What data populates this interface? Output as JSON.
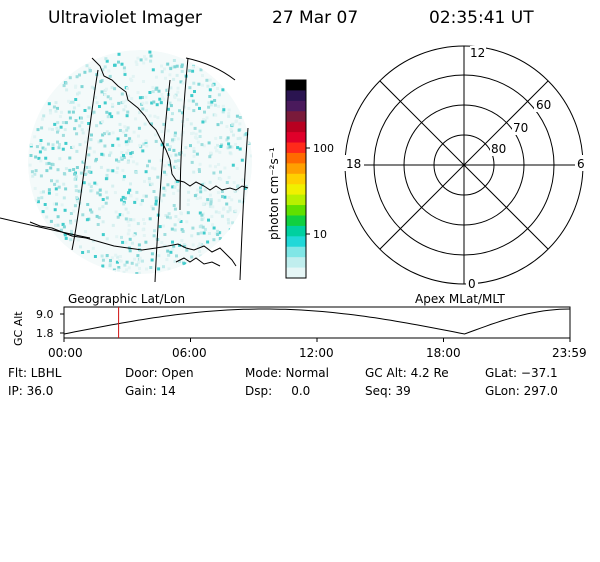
{
  "header": {
    "title": "Ultraviolet Imager",
    "date": "27 Mar 07",
    "time": "02:35:41 UT"
  },
  "colorbar": {
    "label": "photon cm⁻²s⁻¹",
    "tick_labels": [
      "100",
      "10"
    ],
    "colors": [
      "#000000",
      "#2a1450",
      "#4a1a5c",
      "#7a1a3a",
      "#b80020",
      "#e0002a",
      "#ff2a1a",
      "#ff6a00",
      "#ffa000",
      "#ffd000",
      "#f0f000",
      "#b8f000",
      "#60e000",
      "#10d040",
      "#00d0a0",
      "#20d8d8",
      "#80e6e6",
      "#c0eeee",
      "#e6f6f6"
    ]
  },
  "polar_grid": {
    "mlt_labels": {
      "top": "12",
      "right": "6",
      "bottom": "0",
      "left": "18"
    },
    "lat_labels": [
      "60",
      "70",
      "80"
    ]
  },
  "map_labels": {
    "left": "Geographic Lat/Lon",
    "right": "Apex MLat/MLT"
  },
  "altitude_plot": {
    "ylabel": "GC Alt",
    "y_ticks": [
      "9.0",
      "1.8"
    ],
    "x_ticks": [
      "00:00",
      "06:00",
      "12:00",
      "18:00",
      "23:59"
    ],
    "current_time_hours": 2.59,
    "line_color": "#d01010"
  },
  "info": {
    "flt": "Flt: LBHL",
    "door": "Door: Open",
    "mode": "Mode: Normal",
    "gcalt": "GC Alt: 4.2 Re",
    "glat": "GLat: −37.1",
    "ip": "IP: 36.0",
    "gain": "Gain: 14",
    "dsp": "Dsp:     0.0",
    "seq": "Seq: 39",
    "glon": "GLon: 297.0"
  }
}
